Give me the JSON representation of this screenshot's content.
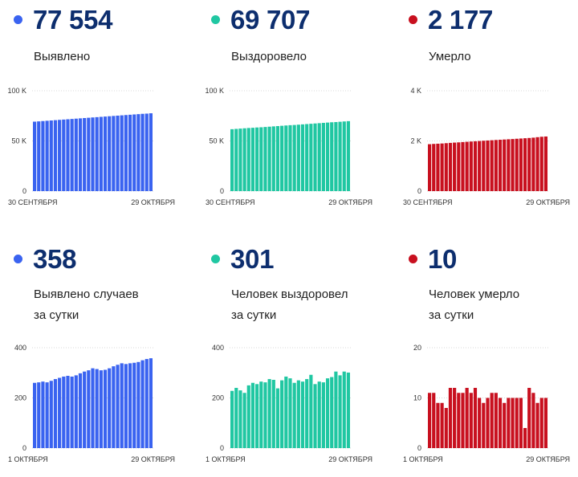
{
  "colors": {
    "blue": "#3a63f0",
    "teal": "#20c7a2",
    "red": "#c8101f"
  },
  "panels": [
    {
      "value": "77 554",
      "label_line1": "Выявлено",
      "label_line2": "",
      "color": "#3a63f0",
      "chart_data": {
        "type": "bar",
        "ylim": [
          0,
          100000
        ],
        "yticks": [
          {
            "v": 0,
            "t": "0"
          },
          {
            "v": 50000,
            "t": "50 K"
          },
          {
            "v": 100000,
            "t": "100 K"
          }
        ],
        "x_start": "30 СЕНТЯБРЯ",
        "x_end": "29 ОКТЯБРЯ",
        "values": [
          69200,
          69500,
          69800,
          70100,
          70400,
          70700,
          71000,
          71300,
          71600,
          71900,
          72200,
          72500,
          72800,
          73100,
          73400,
          73700,
          74000,
          74300,
          74600,
          74900,
          75200,
          75500,
          75800,
          76100,
          76400,
          76700,
          77000,
          77200,
          77554
        ]
      }
    },
    {
      "value": "69 707",
      "label_line1": "Выздоровело",
      "label_line2": "",
      "color": "#20c7a2",
      "chart_data": {
        "type": "bar",
        "ylim": [
          0,
          100000
        ],
        "yticks": [
          {
            "v": 0,
            "t": "0"
          },
          {
            "v": 50000,
            "t": "50 K"
          },
          {
            "v": 100000,
            "t": "100 K"
          }
        ],
        "x_start": "30 СЕНТЯБРЯ",
        "x_end": "29 ОКТЯБРЯ",
        "values": [
          61700,
          62000,
          62300,
          62600,
          62900,
          63100,
          63400,
          63600,
          63900,
          64200,
          64500,
          64800,
          65100,
          65400,
          65700,
          65900,
          66200,
          66500,
          66800,
          67100,
          67400,
          67700,
          68000,
          68300,
          68600,
          68800,
          69100,
          69400,
          69707
        ]
      }
    },
    {
      "value": "2 177",
      "label_line1": "Умерло",
      "label_line2": "",
      "color": "#c8101f",
      "chart_data": {
        "type": "bar",
        "ylim": [
          0,
          4000
        ],
        "yticks": [
          {
            "v": 0,
            "t": "0"
          },
          {
            "v": 2000,
            "t": "2 K"
          },
          {
            "v": 4000,
            "t": "4 K"
          }
        ],
        "x_start": "30 СЕНТЯБРЯ",
        "x_end": "29 ОКТЯБРЯ",
        "values": [
          1870,
          1881,
          1890,
          1899,
          1911,
          1923,
          1934,
          1943,
          1955,
          1966,
          1977,
          1987,
          1997,
          2008,
          2018,
          2028,
          2038,
          2047,
          2057,
          2067,
          2076,
          2087,
          2097,
          2108,
          2118,
          2131,
          2150,
          2167,
          2177
        ]
      }
    },
    {
      "value": "358",
      "label_line1": "Выявлено случаев",
      "label_line2": "за сутки",
      "color": "#3a63f0",
      "chart_data": {
        "type": "bar",
        "ylim": [
          0,
          400
        ],
        "yticks": [
          {
            "v": 0,
            "t": "0"
          },
          {
            "v": 200,
            "t": "200"
          },
          {
            "v": 400,
            "t": "400"
          }
        ],
        "x_start": "1 ОКТЯБРЯ",
        "x_end": "29 ОКТЯБРЯ",
        "values": [
          260,
          262,
          265,
          262,
          268,
          275,
          280,
          285,
          288,
          285,
          290,
          298,
          305,
          310,
          318,
          315,
          310,
          312,
          318,
          326,
          332,
          338,
          335,
          338,
          340,
          343,
          350,
          355,
          358
        ]
      }
    },
    {
      "value": "301",
      "label_line1": "Человек выздоровел",
      "label_line2": "за сутки",
      "color": "#20c7a2",
      "chart_data": {
        "type": "bar",
        "ylim": [
          0,
          400
        ],
        "yticks": [
          {
            "v": 0,
            "t": "0"
          },
          {
            "v": 200,
            "t": "200"
          },
          {
            "v": 400,
            "t": "400"
          }
        ],
        "x_start": "1 ОКТЯБРЯ",
        "x_end": "29 ОКТЯБРЯ",
        "values": [
          228,
          240,
          230,
          220,
          250,
          260,
          255,
          265,
          262,
          275,
          272,
          238,
          270,
          285,
          278,
          260,
          270,
          265,
          275,
          292,
          255,
          265,
          262,
          278,
          283,
          305,
          290,
          305,
          301
        ]
      }
    },
    {
      "value": "10",
      "label_line1": "Человек умерло",
      "label_line2": "за сутки",
      "color": "#c8101f",
      "chart_data": {
        "type": "bar",
        "ylim": [
          0,
          20
        ],
        "yticks": [
          {
            "v": 0,
            "t": "0"
          },
          {
            "v": 10,
            "t": "10"
          },
          {
            "v": 20,
            "t": "20"
          }
        ],
        "x_start": "1 ОКТЯБРЯ",
        "x_end": "29 ОКТЯБРЯ",
        "values": [
          11,
          11,
          9,
          9,
          8,
          12,
          12,
          11,
          11,
          12,
          11,
          12,
          10,
          9,
          10,
          11,
          11,
          10,
          9,
          10,
          10,
          10,
          10,
          4,
          12,
          11,
          9,
          10,
          10
        ]
      }
    }
  ]
}
